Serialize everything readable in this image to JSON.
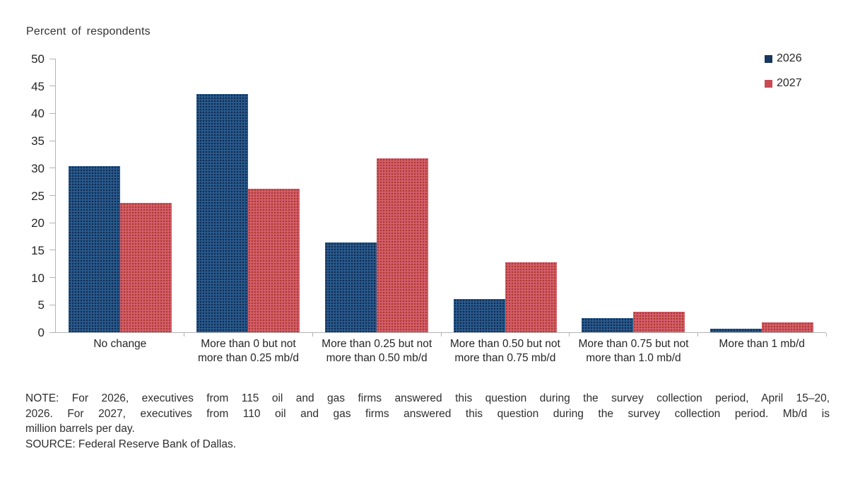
{
  "ylabel_text": "Percent of respondents",
  "legend": {
    "items": [
      {
        "label": "2026",
        "color": "#17375e"
      },
      {
        "label": "2027",
        "color": "#c94a52"
      }
    ]
  },
  "chart_data": {
    "type": "bar",
    "title": "",
    "xlabel": "",
    "ylabel": "Percent of respondents",
    "ylim": [
      0,
      50
    ],
    "ytick_step": 5,
    "grid": false,
    "legend_position": "top-right",
    "categories": [
      "No change",
      "More than 0 but not more than 0.25 mb/d",
      "More than 0.25 but not more than 0.50 mb/d",
      "More than 0.50 but not more than 0.75 mb/d",
      "More than 0.75 but not more than 1.0 mb/d",
      "More than 1 mb/d"
    ],
    "series": [
      {
        "name": "2026",
        "color": "#1f4e79",
        "values": [
          30.4,
          43.5,
          16.4,
          6.1,
          2.6,
          0.7
        ]
      },
      {
        "name": "2027",
        "color": "#c9505c",
        "values": [
          23.7,
          26.2,
          31.8,
          12.8,
          3.7,
          1.8
        ]
      }
    ]
  },
  "note": {
    "line1": "NOTE: For 2026, executives from 115 oil and gas firms answered this question during the survey collection period, April 15–20,",
    "line2": "2026. For 2027, executives from 110 oil and gas firms answered this question during the survey collection period. Mb/d is",
    "line3": "million barrels per day.",
    "source": "SOURCE: Federal Reserve Bank of Dallas."
  }
}
